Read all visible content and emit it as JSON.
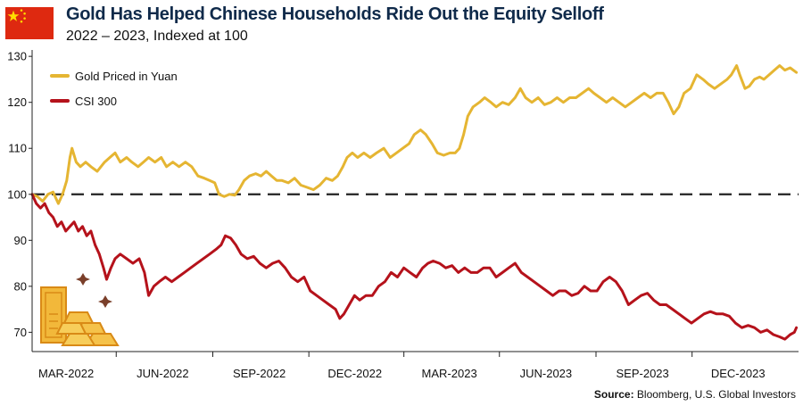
{
  "header": {
    "title": "Gold Has Helped Chinese Households Ride Out the Equity Selloff",
    "subtitle": "2022 – 2023, Indexed at 100"
  },
  "footer": {
    "source_label": "Source:",
    "source_text": " Bloomberg, U.S. Global Investors"
  },
  "colors": {
    "gold": "#e5b532",
    "csi": "#b5121b",
    "baseline": "#222222",
    "flag_red": "#de2910",
    "flag_star": "#ffde00"
  },
  "icons": [
    "china-flag-icon",
    "gold-bars-icon",
    "sparkle-icon"
  ],
  "chart_data": {
    "type": "line",
    "title": "Gold Has Helped Chinese Households Ride Out the Equity Selloff",
    "subtitle": "2022 – 2023, Indexed at 100",
    "xlabel": "",
    "ylabel": "",
    "ylim": [
      66,
      131
    ],
    "xlim": [
      "2022-01-31",
      "2024-01-31"
    ],
    "y_ticks": [
      70,
      80,
      90,
      100,
      110,
      120,
      130
    ],
    "x_ticks": [
      "MAR-2022",
      "JUN-2022",
      "SEP-2022",
      "DEC-2022",
      "MAR-2023",
      "JUN-2023",
      "SEP-2023",
      "DEC-2023"
    ],
    "x_tick_dates": [
      "2022-03-01",
      "2022-06-01",
      "2022-09-01",
      "2022-12-01",
      "2023-03-01",
      "2023-06-01",
      "2023-09-01",
      "2023-12-01"
    ],
    "reference_line": {
      "y": 100,
      "style": "dashed"
    },
    "legend": {
      "position": "top-left"
    },
    "grid": false,
    "series": [
      {
        "name": "Gold Priced in Yuan",
        "color": "#e5b532",
        "points": [
          [
            "2022-01-31",
            100
          ],
          [
            "2022-02-05",
            99.5
          ],
          [
            "2022-02-10",
            98.5
          ],
          [
            "2022-02-15",
            100
          ],
          [
            "2022-02-20",
            100.5
          ],
          [
            "2022-02-25",
            98
          ],
          [
            "2022-03-01",
            100
          ],
          [
            "2022-03-05",
            103
          ],
          [
            "2022-03-08",
            108
          ],
          [
            "2022-03-10",
            110
          ],
          [
            "2022-03-14",
            107
          ],
          [
            "2022-03-18",
            106
          ],
          [
            "2022-03-23",
            107
          ],
          [
            "2022-03-28",
            106
          ],
          [
            "2022-04-03",
            105
          ],
          [
            "2022-04-10",
            107
          ],
          [
            "2022-04-15",
            108
          ],
          [
            "2022-04-20",
            109
          ],
          [
            "2022-04-25",
            107
          ],
          [
            "2022-05-01",
            108
          ],
          [
            "2022-05-06",
            107
          ],
          [
            "2022-05-12",
            106
          ],
          [
            "2022-05-17",
            107
          ],
          [
            "2022-05-22",
            108
          ],
          [
            "2022-05-28",
            107
          ],
          [
            "2022-06-03",
            108
          ],
          [
            "2022-06-08",
            106
          ],
          [
            "2022-06-14",
            107
          ],
          [
            "2022-06-20",
            106
          ],
          [
            "2022-06-26",
            107
          ],
          [
            "2022-07-02",
            106
          ],
          [
            "2022-07-08",
            104
          ],
          [
            "2022-07-14",
            103.5
          ],
          [
            "2022-07-19",
            103
          ],
          [
            "2022-07-24",
            102.5
          ],
          [
            "2022-07-28",
            100
          ],
          [
            "2022-08-02",
            99.5
          ],
          [
            "2022-08-07",
            100
          ],
          [
            "2022-08-12",
            99.8
          ],
          [
            "2022-08-16",
            101
          ],
          [
            "2022-08-21",
            103
          ],
          [
            "2022-08-26",
            104
          ],
          [
            "2022-09-01",
            104.5
          ],
          [
            "2022-09-06",
            104
          ],
          [
            "2022-09-11",
            105
          ],
          [
            "2022-09-16",
            104
          ],
          [
            "2022-09-21",
            103
          ],
          [
            "2022-09-26",
            103
          ],
          [
            "2022-10-02",
            102.5
          ],
          [
            "2022-10-08",
            103.5
          ],
          [
            "2022-10-14",
            102
          ],
          [
            "2022-10-20",
            101.5
          ],
          [
            "2022-10-26",
            101
          ],
          [
            "2022-11-01",
            102
          ],
          [
            "2022-11-07",
            103.5
          ],
          [
            "2022-11-13",
            103
          ],
          [
            "2022-11-18",
            104
          ],
          [
            "2022-11-23",
            106
          ],
          [
            "2022-11-27",
            108
          ],
          [
            "2022-12-02",
            109
          ],
          [
            "2022-12-07",
            108
          ],
          [
            "2022-12-13",
            109
          ],
          [
            "2022-12-19",
            108
          ],
          [
            "2022-12-25",
            109
          ],
          [
            "2023-01-01",
            110
          ],
          [
            "2023-01-07",
            108
          ],
          [
            "2023-01-13",
            109
          ],
          [
            "2023-01-19",
            110
          ],
          [
            "2023-01-25",
            111
          ],
          [
            "2023-01-30",
            113
          ],
          [
            "2023-02-05",
            114
          ],
          [
            "2023-02-10",
            113
          ],
          [
            "2023-02-16",
            111
          ],
          [
            "2023-02-21",
            109
          ],
          [
            "2023-02-27",
            108.5
          ],
          [
            "2023-03-05",
            109
          ],
          [
            "2023-03-10",
            109
          ],
          [
            "2023-03-14",
            110
          ],
          [
            "2023-03-18",
            113
          ],
          [
            "2023-03-22",
            117
          ],
          [
            "2023-03-27",
            119
          ],
          [
            "2023-04-02",
            120
          ],
          [
            "2023-04-07",
            121
          ],
          [
            "2023-04-13",
            120
          ],
          [
            "2023-04-18",
            119
          ],
          [
            "2023-04-24",
            120
          ],
          [
            "2023-04-30",
            119.5
          ],
          [
            "2023-05-06",
            121
          ],
          [
            "2023-05-11",
            123
          ],
          [
            "2023-05-16",
            121
          ],
          [
            "2023-05-22",
            120
          ],
          [
            "2023-05-28",
            121
          ],
          [
            "2023-06-03",
            119.5
          ],
          [
            "2023-06-09",
            120
          ],
          [
            "2023-06-15",
            121
          ],
          [
            "2023-06-21",
            120
          ],
          [
            "2023-06-27",
            121
          ],
          [
            "2023-07-03",
            121
          ],
          [
            "2023-07-09",
            122
          ],
          [
            "2023-07-15",
            123
          ],
          [
            "2023-07-20",
            122
          ],
          [
            "2023-07-26",
            121
          ],
          [
            "2023-08-01",
            120
          ],
          [
            "2023-08-07",
            121
          ],
          [
            "2023-08-13",
            120
          ],
          [
            "2023-08-19",
            119
          ],
          [
            "2023-08-25",
            120
          ],
          [
            "2023-08-31",
            121
          ],
          [
            "2023-09-06",
            122
          ],
          [
            "2023-09-12",
            121
          ],
          [
            "2023-09-18",
            122
          ],
          [
            "2023-09-24",
            122
          ],
          [
            "2023-09-29",
            120
          ],
          [
            "2023-10-04",
            117.5
          ],
          [
            "2023-10-09",
            119
          ],
          [
            "2023-10-14",
            122
          ],
          [
            "2023-10-20",
            123
          ],
          [
            "2023-10-26",
            126
          ],
          [
            "2023-11-01",
            125
          ],
          [
            "2023-11-06",
            124
          ],
          [
            "2023-11-12",
            123
          ],
          [
            "2023-11-18",
            124
          ],
          [
            "2023-11-24",
            125
          ],
          [
            "2023-11-28",
            126
          ],
          [
            "2023-12-03",
            128
          ],
          [
            "2023-12-06",
            126
          ],
          [
            "2023-12-11",
            123
          ],
          [
            "2023-12-15",
            123.5
          ],
          [
            "2023-12-20",
            125
          ],
          [
            "2023-12-25",
            125.5
          ],
          [
            "2023-12-29",
            125
          ],
          [
            "2024-01-03",
            126
          ],
          [
            "2024-01-08",
            127
          ],
          [
            "2024-01-13",
            128
          ],
          [
            "2024-01-18",
            127
          ],
          [
            "2024-01-23",
            127.5
          ],
          [
            "2024-01-29",
            126.5
          ]
        ]
      },
      {
        "name": "CSI 300",
        "color": "#b5121b",
        "points": [
          [
            "2022-01-31",
            100
          ],
          [
            "2022-02-04",
            98
          ],
          [
            "2022-02-08",
            97
          ],
          [
            "2022-02-12",
            98
          ],
          [
            "2022-02-16",
            96
          ],
          [
            "2022-02-20",
            95
          ],
          [
            "2022-02-24",
            93
          ],
          [
            "2022-02-28",
            94
          ],
          [
            "2022-03-04",
            92
          ],
          [
            "2022-03-08",
            93
          ],
          [
            "2022-03-12",
            94
          ],
          [
            "2022-03-16",
            92
          ],
          [
            "2022-03-20",
            93
          ],
          [
            "2022-03-24",
            91
          ],
          [
            "2022-03-28",
            92
          ],
          [
            "2022-04-01",
            89
          ],
          [
            "2022-04-05",
            87
          ],
          [
            "2022-04-09",
            84
          ],
          [
            "2022-04-12",
            81.5
          ],
          [
            "2022-04-16",
            84
          ],
          [
            "2022-04-20",
            86
          ],
          [
            "2022-04-25",
            87
          ],
          [
            "2022-05-01",
            86
          ],
          [
            "2022-05-07",
            85
          ],
          [
            "2022-05-13",
            86
          ],
          [
            "2022-05-18",
            83
          ],
          [
            "2022-05-22",
            78
          ],
          [
            "2022-05-27",
            80
          ],
          [
            "2022-06-01",
            81
          ],
          [
            "2022-06-07",
            82
          ],
          [
            "2022-06-13",
            81
          ],
          [
            "2022-06-19",
            82
          ],
          [
            "2022-06-25",
            83
          ],
          [
            "2022-07-01",
            84
          ],
          [
            "2022-07-07",
            85
          ],
          [
            "2022-07-13",
            86
          ],
          [
            "2022-07-19",
            87
          ],
          [
            "2022-07-25",
            88
          ],
          [
            "2022-07-30",
            89
          ],
          [
            "2022-08-03",
            91
          ],
          [
            "2022-08-08",
            90.5
          ],
          [
            "2022-08-13",
            89
          ],
          [
            "2022-08-18",
            87
          ],
          [
            "2022-08-24",
            86
          ],
          [
            "2022-08-30",
            86.5
          ],
          [
            "2022-09-05",
            85
          ],
          [
            "2022-09-11",
            84
          ],
          [
            "2022-09-17",
            85
          ],
          [
            "2022-09-23",
            85.5
          ],
          [
            "2022-09-29",
            84
          ],
          [
            "2022-10-05",
            82
          ],
          [
            "2022-10-11",
            81
          ],
          [
            "2022-10-17",
            82
          ],
          [
            "2022-10-23",
            79
          ],
          [
            "2022-10-29",
            78
          ],
          [
            "2022-11-04",
            77
          ],
          [
            "2022-11-10",
            76
          ],
          [
            "2022-11-16",
            75
          ],
          [
            "2022-11-20",
            73
          ],
          [
            "2022-11-24",
            74
          ],
          [
            "2022-11-29",
            76
          ],
          [
            "2022-12-04",
            78
          ],
          [
            "2022-12-09",
            77
          ],
          [
            "2022-12-15",
            78
          ],
          [
            "2022-12-21",
            78
          ],
          [
            "2022-12-27",
            80
          ],
          [
            "2023-01-02",
            81
          ],
          [
            "2023-01-08",
            83
          ],
          [
            "2023-01-14",
            82
          ],
          [
            "2023-01-20",
            84
          ],
          [
            "2023-01-26",
            83
          ],
          [
            "2023-02-01",
            82
          ],
          [
            "2023-02-07",
            84
          ],
          [
            "2023-02-12",
            85
          ],
          [
            "2023-02-17",
            85.5
          ],
          [
            "2023-02-23",
            85
          ],
          [
            "2023-03-01",
            84
          ],
          [
            "2023-03-07",
            84.5
          ],
          [
            "2023-03-13",
            83
          ],
          [
            "2023-03-19",
            84
          ],
          [
            "2023-03-25",
            83
          ],
          [
            "2023-03-31",
            83
          ],
          [
            "2023-04-06",
            84
          ],
          [
            "2023-04-12",
            84
          ],
          [
            "2023-04-18",
            82
          ],
          [
            "2023-04-24",
            83
          ],
          [
            "2023-04-30",
            84
          ],
          [
            "2023-05-06",
            85
          ],
          [
            "2023-05-12",
            83
          ],
          [
            "2023-05-18",
            82
          ],
          [
            "2023-05-24",
            81
          ],
          [
            "2023-05-30",
            80
          ],
          [
            "2023-06-05",
            79
          ],
          [
            "2023-06-11",
            78
          ],
          [
            "2023-06-17",
            79
          ],
          [
            "2023-06-23",
            79
          ],
          [
            "2023-06-29",
            78
          ],
          [
            "2023-07-05",
            78.5
          ],
          [
            "2023-07-11",
            80
          ],
          [
            "2023-07-17",
            79
          ],
          [
            "2023-07-23",
            79
          ],
          [
            "2023-07-29",
            81
          ],
          [
            "2023-08-04",
            82
          ],
          [
            "2023-08-10",
            81
          ],
          [
            "2023-08-16",
            79
          ],
          [
            "2023-08-22",
            76
          ],
          [
            "2023-08-28",
            77
          ],
          [
            "2023-09-03",
            78
          ],
          [
            "2023-09-09",
            78.5
          ],
          [
            "2023-09-15",
            77
          ],
          [
            "2023-09-21",
            76
          ],
          [
            "2023-09-27",
            76
          ],
          [
            "2023-10-03",
            75
          ],
          [
            "2023-10-09",
            74
          ],
          [
            "2023-10-15",
            73
          ],
          [
            "2023-10-21",
            72
          ],
          [
            "2023-10-27",
            73
          ],
          [
            "2023-11-02",
            74
          ],
          [
            "2023-11-08",
            74.5
          ],
          [
            "2023-11-14",
            74
          ],
          [
            "2023-11-20",
            74
          ],
          [
            "2023-11-26",
            73.5
          ],
          [
            "2023-12-02",
            72
          ],
          [
            "2023-12-08",
            71
          ],
          [
            "2023-12-14",
            71.5
          ],
          [
            "2023-12-20",
            71
          ],
          [
            "2023-12-26",
            70
          ],
          [
            "2024-01-01",
            70.5
          ],
          [
            "2024-01-07",
            69.5
          ],
          [
            "2024-01-13",
            69
          ],
          [
            "2024-01-18",
            68.5
          ],
          [
            "2024-01-23",
            69.5
          ],
          [
            "2024-01-27",
            70
          ],
          [
            "2024-01-29",
            71
          ]
        ]
      }
    ]
  }
}
